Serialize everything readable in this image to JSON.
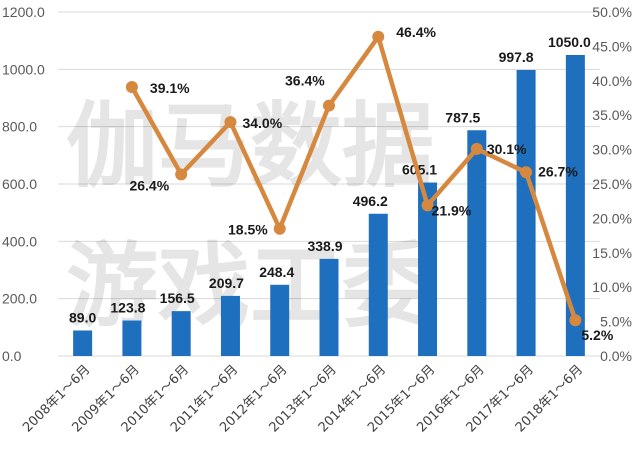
{
  "watermark": {
    "line1": "伽马数据",
    "line2": "游戏工委"
  },
  "chart_data": {
    "type": "bar",
    "categories": [
      "2008年1～6月",
      "2009年1～6月",
      "2010年1～6月",
      "2011年1～6月",
      "2012年1～6月",
      "2013年1～6月",
      "2014年1～6月",
      "2015年1～6月",
      "2016年1～6月",
      "2017年1～6月",
      "2018年1～6月"
    ],
    "bar_values": [
      89.0,
      123.8,
      156.5,
      209.7,
      248.4,
      338.9,
      496.2,
      605.1,
      787.5,
      997.8,
      1050.0
    ],
    "bar_labels": [
      "89.0",
      "123.8",
      "156.5",
      "209.7",
      "248.4",
      "338.9",
      "496.2",
      "605.1",
      "787.5",
      "997.8",
      "1050.0"
    ],
    "line_values": [
      null,
      39.1,
      26.4,
      34.0,
      18.5,
      36.4,
      46.4,
      21.9,
      30.1,
      26.7,
      5.2
    ],
    "line_labels": [
      null,
      "39.1%",
      "26.4%",
      "34.0%",
      "18.5%",
      "36.4%",
      "46.4%",
      "21.9%",
      "30.1%",
      "26.7%",
      "5.2%"
    ],
    "y_left": {
      "min": 0,
      "max": 1200,
      "step": 200,
      "tick_labels": [
        "0.0",
        "200.0",
        "400.0",
        "600.0",
        "800.0",
        "1000.0",
        "1200.0"
      ]
    },
    "y_right": {
      "min": 0,
      "max": 50,
      "step": 5,
      "tick_labels": [
        "0.0%",
        "5.0%",
        "10.0%",
        "15.0%",
        "20.0%",
        "25.0%",
        "30.0%",
        "35.0%",
        "40.0%",
        "45.0%",
        "50.0%"
      ]
    },
    "title": "",
    "xlabel": "",
    "ylabel": "",
    "grid": true,
    "legend": "none",
    "colors": {
      "bar": "#1f6fbf",
      "line": "#d6883f",
      "grid": "#d9d9d9"
    }
  }
}
